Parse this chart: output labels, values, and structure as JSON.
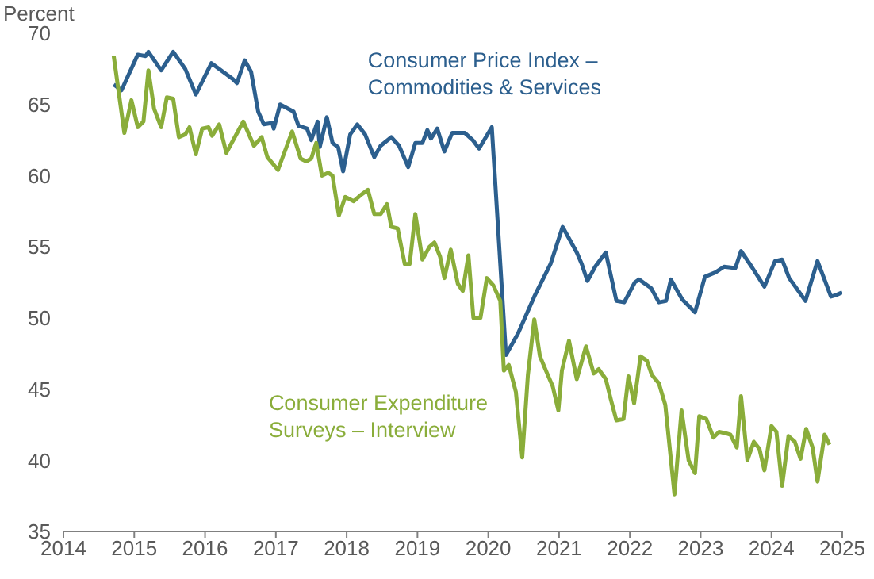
{
  "chart_data": {
    "type": "line",
    "ylabel": "Percent",
    "xlim": [
      2014,
      2025
    ],
    "xticks": [
      2014,
      2015,
      2016,
      2017,
      2018,
      2019,
      2020,
      2021,
      2022,
      2023,
      2024,
      2025
    ],
    "ylim": [
      35,
      70
    ],
    "yticks": [
      35,
      40,
      45,
      50,
      55,
      60,
      65,
      70
    ],
    "legend": false,
    "series": [
      {
        "name": "Consumer Price Index – Commodities & Services",
        "color": "#2c5f8e",
        "x": [
          2014.71,
          2014.82,
          2015.05,
          2015.16,
          2015.2,
          2015.38,
          2015.55,
          2015.72,
          2015.87,
          2016.09,
          2016.39,
          2016.45,
          2016.56,
          2016.65,
          2016.75,
          2016.83,
          2016.95,
          2016.97,
          2017.06,
          2017.25,
          2017.32,
          2017.44,
          2017.5,
          2017.59,
          2017.62,
          2017.72,
          2017.8,
          2017.88,
          2017.95,
          2018.05,
          2018.15,
          2018.26,
          2018.39,
          2018.48,
          2018.63,
          2018.74,
          2018.87,
          2018.97,
          2019.07,
          2019.14,
          2019.19,
          2019.28,
          2019.38,
          2019.49,
          2019.67,
          2019.78,
          2019.87,
          2020.05,
          2020.25,
          2020.42,
          2020.65,
          2020.88,
          2021.05,
          2021.25,
          2021.32,
          2021.4,
          2021.51,
          2021.66,
          2021.81,
          2021.92,
          2022.07,
          2022.13,
          2022.3,
          2022.41,
          2022.51,
          2022.58,
          2022.74,
          2022.92,
          2023.06,
          2023.21,
          2023.33,
          2023.49,
          2023.57,
          2023.72,
          2023.9,
          2024.05,
          2024.15,
          2024.25,
          2024.48,
          2024.65,
          2024.84,
          2024.91,
          2025.0
        ],
        "values": [
          66.4,
          66.0,
          68.5,
          68.4,
          68.7,
          67.4,
          68.7,
          67.5,
          65.7,
          67.9,
          66.8,
          66.5,
          68.1,
          67.3,
          64.5,
          63.6,
          63.7,
          63.3,
          65.0,
          64.5,
          63.5,
          63.3,
          62.5,
          63.8,
          62.0,
          64.1,
          62.3,
          62.0,
          60.3,
          62.9,
          63.6,
          62.9,
          61.3,
          62.1,
          62.7,
          62.1,
          60.6,
          62.3,
          62.3,
          63.2,
          62.6,
          63.3,
          61.7,
          63.0,
          63.0,
          62.5,
          61.9,
          63.4,
          47.4,
          48.9,
          51.5,
          53.8,
          56.4,
          54.6,
          53.8,
          52.6,
          53.6,
          54.6,
          51.2,
          51.1,
          52.5,
          52.7,
          52.1,
          51.1,
          51.2,
          52.7,
          51.3,
          50.4,
          52.9,
          53.2,
          53.6,
          53.5,
          54.7,
          53.6,
          52.2,
          54.0,
          54.1,
          52.8,
          51.2,
          54.0,
          51.5,
          51.6,
          51.8
        ]
      },
      {
        "name": "Consumer Expenditure Surveys – Interview",
        "color": "#8aad3a",
        "x": [
          2014.71,
          2014.86,
          2014.96,
          2015.05,
          2015.13,
          2015.2,
          2015.28,
          2015.38,
          2015.46,
          2015.55,
          2015.63,
          2015.72,
          2015.78,
          2015.87,
          2015.96,
          2016.05,
          2016.1,
          2016.2,
          2016.3,
          2016.54,
          2016.69,
          2016.8,
          2016.88,
          2017.03,
          2017.23,
          2017.35,
          2017.43,
          2017.5,
          2017.57,
          2017.65,
          2017.74,
          2017.8,
          2017.89,
          2017.98,
          2018.1,
          2018.19,
          2018.3,
          2018.39,
          2018.48,
          2018.57,
          2018.63,
          2018.72,
          2018.82,
          2018.89,
          2018.97,
          2019.07,
          2019.17,
          2019.24,
          2019.32,
          2019.38,
          2019.47,
          2019.57,
          2019.64,
          2019.72,
          2019.79,
          2019.89,
          2019.98,
          2020.07,
          2020.17,
          2020.22,
          2020.29,
          2020.39,
          2020.48,
          2020.56,
          2020.65,
          2020.73,
          2020.84,
          2020.91,
          2020.99,
          2021.04,
          2021.14,
          2021.25,
          2021.38,
          2021.49,
          2021.56,
          2021.66,
          2021.73,
          2021.81,
          2021.91,
          2021.98,
          2022.06,
          2022.15,
          2022.24,
          2022.31,
          2022.41,
          2022.5,
          2022.63,
          2022.73,
          2022.83,
          2022.92,
          2022.98,
          2023.08,
          2023.18,
          2023.26,
          2023.35,
          2023.42,
          2023.51,
          2023.57,
          2023.66,
          2023.75,
          2023.83,
          2023.9,
          2024.0,
          2024.07,
          2024.15,
          2024.24,
          2024.33,
          2024.41,
          2024.49,
          2024.58,
          2024.65,
          2024.75,
          2024.82
        ],
        "values": [
          68.4,
          63.0,
          65.3,
          63.4,
          63.8,
          67.4,
          64.7,
          63.4,
          65.5,
          65.4,
          62.7,
          62.9,
          63.4,
          61.5,
          63.3,
          63.4,
          62.8,
          63.6,
          61.6,
          63.8,
          62.1,
          62.7,
          61.3,
          60.4,
          63.1,
          61.2,
          61.0,
          61.2,
          62.3,
          60.0,
          60.2,
          60.0,
          57.2,
          58.5,
          58.2,
          58.6,
          59.0,
          57.3,
          57.3,
          58.0,
          56.4,
          56.3,
          53.8,
          53.8,
          57.3,
          54.1,
          55.0,
          55.3,
          54.3,
          52.8,
          54.8,
          52.4,
          51.9,
          54.4,
          50.0,
          50.0,
          52.8,
          52.3,
          51.2,
          46.3,
          46.7,
          44.8,
          40.2,
          46.0,
          49.9,
          47.3,
          46.0,
          45.2,
          43.5,
          46.3,
          48.4,
          45.7,
          48.0,
          46.1,
          46.4,
          45.7,
          44.3,
          42.8,
          42.9,
          45.9,
          44.0,
          47.3,
          47.0,
          46.0,
          45.4,
          43.9,
          37.6,
          43.5,
          40.0,
          39.1,
          43.1,
          42.9,
          41.6,
          42.0,
          41.9,
          41.8,
          40.9,
          44.5,
          40.0,
          41.3,
          40.8,
          39.3,
          42.4,
          42.0,
          38.2,
          41.7,
          41.3,
          40.1,
          42.2,
          40.9,
          38.5,
          41.8,
          41.1
        ]
      }
    ]
  }
}
